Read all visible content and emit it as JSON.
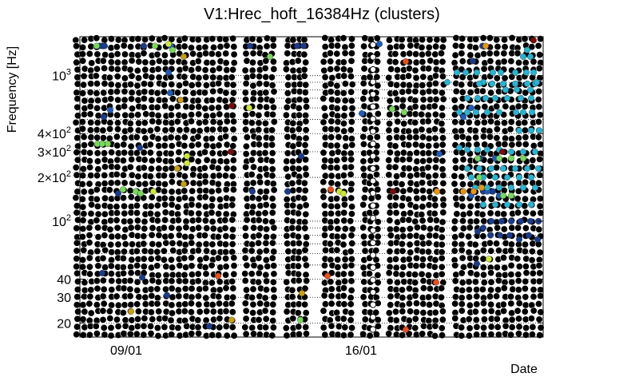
{
  "chart_data": {
    "type": "scatter",
    "title": "V1:Hrec_hoft_16384Hz (clusters)",
    "xlabel": "Date",
    "ylabel": "Frequency [Hz]",
    "yscale": "log",
    "ylim": [
      16,
      1850
    ],
    "x_ticks": [
      "09/01",
      "16/01"
    ],
    "y_ticks": [
      {
        "value": 20,
        "label": "20"
      },
      {
        "value": 30,
        "label": "30"
      },
      {
        "value": 40,
        "label": "40"
      },
      {
        "value": 100,
        "label": "10",
        "sup": "2"
      },
      {
        "value": 200,
        "label": "2×10",
        "sup": "2"
      },
      {
        "value": 300,
        "label": "3×10",
        "sup": "2"
      },
      {
        "value": 400,
        "label": "4×10",
        "sup": "2"
      },
      {
        "value": 1000,
        "label": "10",
        "sup": "3"
      }
    ],
    "grid": "dotted",
    "background_marker": "black open circles (dense)",
    "colors": {
      "dark_red": "#7a0c0c",
      "orange_red": "#e8501c",
      "orange": "#e8960e",
      "dark_yellow": "#c8a012",
      "yellow_green": "#cce83a",
      "light_green": "#78d85a",
      "cyan": "#27b4d2",
      "light_blue": "#2a8fd8",
      "blue": "#1f5cb8",
      "dark_blue": "#1a3c8c"
    },
    "series": [
      {
        "color": "#1a3c8c",
        "points": [
          [
            125,
            1600
          ],
          [
            128,
            1600
          ],
          [
            131,
            1600
          ],
          [
            180,
            1600
          ],
          [
            313,
            1600
          ],
          [
            372,
            1600
          ],
          [
            380,
            1600
          ],
          [
            604,
            1600
          ],
          [
            130,
            520
          ],
          [
            175,
            320
          ],
          [
            148,
            155
          ],
          [
            175,
            155
          ],
          [
            316,
            160
          ],
          [
            360,
            160
          ],
          [
            377,
            280
          ],
          [
            592,
            1260
          ],
          [
            601,
            270
          ],
          [
            605,
            160
          ],
          [
            617,
            160
          ],
          [
            615,
            100
          ],
          [
            628,
            100
          ],
          [
            640,
            100
          ],
          [
            652,
            100
          ],
          [
            664,
            100
          ],
          [
            674,
            100
          ],
          [
            598,
            85
          ],
          [
            605,
            90
          ],
          [
            614,
            80
          ],
          [
            626,
            80
          ],
          [
            638,
            80
          ],
          [
            650,
            75
          ],
          [
            662,
            80
          ],
          [
            673,
            75
          ],
          [
            597,
            51
          ],
          [
            128,
            44
          ],
          [
            178,
            41
          ],
          [
            209,
            31
          ],
          [
            262,
            19
          ]
        ]
      },
      {
        "color": "#1f5cb8",
        "points": [
          [
            211,
            1050
          ],
          [
            214,
            1600
          ],
          [
            138,
            580
          ],
          [
            213,
            760
          ],
          [
            453,
            550
          ],
          [
            475,
            1650
          ],
          [
            550,
            290
          ],
          [
            590,
            150
          ],
          [
            580,
            520
          ],
          [
            590,
            600
          ],
          [
            610,
            160
          ],
          [
            625,
            150
          ],
          [
            620,
            270
          ]
        ]
      },
      {
        "color": "#27b4d2",
        "points": [
          [
            572,
            1050
          ],
          [
            583,
            1050
          ],
          [
            597,
            1050
          ],
          [
            605,
            900
          ],
          [
            617,
            1050
          ],
          [
            627,
            1050
          ],
          [
            645,
            1050
          ],
          [
            659,
            1050
          ],
          [
            668,
            1050
          ],
          [
            575,
            560
          ],
          [
            585,
            560
          ],
          [
            596,
            560
          ],
          [
            610,
            560
          ],
          [
            625,
            560
          ],
          [
            646,
            560
          ],
          [
            655,
            560
          ],
          [
            666,
            560
          ],
          [
            585,
            700
          ],
          [
            598,
            700
          ],
          [
            608,
            700
          ],
          [
            620,
            700
          ],
          [
            635,
            700
          ],
          [
            652,
            700
          ],
          [
            665,
            700
          ],
          [
            600,
            880
          ],
          [
            616,
            880
          ],
          [
            630,
            880
          ],
          [
            645,
            880
          ],
          [
            660,
            880
          ],
          [
            670,
            880
          ],
          [
            650,
            420
          ],
          [
            665,
            420
          ],
          [
            675,
            420
          ],
          [
            575,
            320
          ],
          [
            585,
            310
          ],
          [
            598,
            310
          ],
          [
            610,
            310
          ],
          [
            625,
            310
          ],
          [
            640,
            300
          ],
          [
            655,
            300
          ],
          [
            670,
            300
          ],
          [
            585,
            230
          ],
          [
            600,
            230
          ],
          [
            615,
            230
          ],
          [
            630,
            230
          ],
          [
            645,
            230
          ],
          [
            660,
            230
          ],
          [
            674,
            230
          ],
          [
            590,
            200
          ],
          [
            605,
            200
          ],
          [
            620,
            200
          ],
          [
            635,
            200
          ],
          [
            650,
            200
          ],
          [
            665,
            200
          ],
          [
            595,
            170
          ],
          [
            610,
            170
          ],
          [
            625,
            170
          ],
          [
            640,
            170
          ],
          [
            655,
            170
          ],
          [
            670,
            170
          ],
          [
            605,
            130
          ],
          [
            620,
            130
          ],
          [
            635,
            130
          ],
          [
            650,
            130
          ],
          [
            665,
            130
          ],
          [
            560,
            900
          ],
          [
            633,
            800
          ],
          [
            647,
            800
          ],
          [
            664,
            800
          ],
          [
            672,
            900
          ],
          [
            660,
            1500
          ],
          [
            664,
            1350
          ],
          [
            655,
            1350
          ]
        ]
      },
      {
        "color": "#78d85a",
        "points": [
          [
            121,
            1600
          ],
          [
            194,
            1600
          ],
          [
            216,
            1500
          ],
          [
            338,
            1350
          ],
          [
            122,
            340
          ],
          [
            128,
            340
          ],
          [
            135,
            340
          ],
          [
            154,
            165
          ],
          [
            491,
            590
          ],
          [
            506,
            560
          ],
          [
            598,
            270
          ],
          [
            625,
            270
          ],
          [
            640,
            270
          ],
          [
            655,
            270
          ],
          [
            170,
            160
          ],
          [
            176,
            155
          ],
          [
            600,
            200
          ],
          [
            630,
            150
          ],
          [
            640,
            150
          ],
          [
            376,
            21
          ]
        ]
      },
      {
        "color": "#cce83a",
        "points": [
          [
            211,
            1650
          ],
          [
            312,
            600
          ],
          [
            234,
            280
          ],
          [
            234,
            250
          ],
          [
            192,
            160
          ],
          [
            425,
            160
          ],
          [
            430,
            155
          ],
          [
            612,
            55
          ]
        ]
      },
      {
        "color": "#c8a012",
        "points": [
          [
            230,
            1350
          ],
          [
            226,
            680
          ],
          [
            222,
            230
          ],
          [
            230,
            180
          ],
          [
            164,
            24
          ],
          [
            378,
            32
          ],
          [
            290,
            21
          ]
        ]
      },
      {
        "color": "#e8960e",
        "points": [
          [
            547,
            160
          ],
          [
            580,
            160
          ],
          [
            593,
            160
          ],
          [
            603,
            170
          ],
          [
            608,
            1600
          ]
        ]
      },
      {
        "color": "#e8501c",
        "points": [
          [
            508,
            1250
          ],
          [
            414,
            165
          ],
          [
            410,
            42
          ],
          [
            273,
            42
          ],
          [
            546,
            38
          ],
          [
            508,
            18
          ]
        ]
      },
      {
        "color": "#7a0c0c",
        "points": [
          [
            290,
            620
          ],
          [
            289,
            300
          ],
          [
            629,
            300
          ],
          [
            492,
            160
          ],
          [
            668,
            1750
          ]
        ]
      }
    ]
  }
}
